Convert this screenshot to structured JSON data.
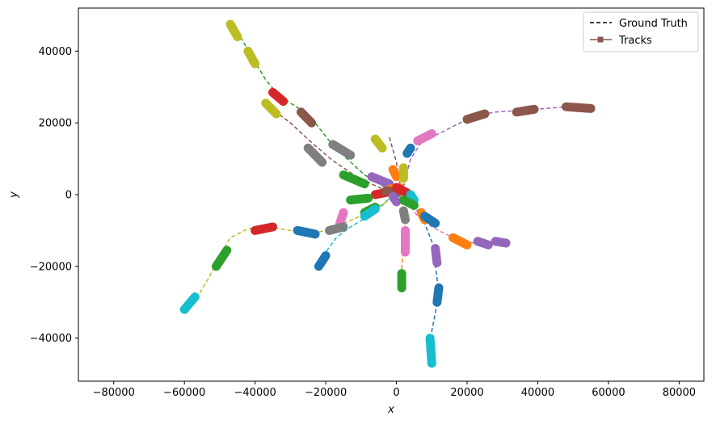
{
  "chart_data": {
    "type": "line",
    "xlabel": "x",
    "ylabel": "y",
    "xlim": [
      -90000,
      87000
    ],
    "ylim": [
      -52000,
      52000
    ],
    "xticks": [
      -80000,
      -60000,
      -40000,
      -20000,
      0,
      20000,
      40000,
      60000,
      80000
    ],
    "yticks": [
      -40000,
      -20000,
      0,
      20000,
      40000
    ],
    "xtick_labels": [
      "−80000",
      "−60000",
      "−40000",
      "−20000",
      "0",
      "20000",
      "40000",
      "60000",
      "80000"
    ],
    "ytick_labels": [
      "−40000",
      "−20000",
      "0",
      "20000",
      "40000"
    ],
    "legend_position": "top-right",
    "legend": [
      {
        "label": "Ground Truth",
        "style": "dashed",
        "color": "#000000"
      },
      {
        "label": "Tracks",
        "style": "solid-square-marker",
        "color": "#8c564b"
      }
    ],
    "ground_truth": [
      {
        "color": "#2ca02c",
        "points": [
          [
            -46000,
            47000
          ],
          [
            -43000,
            42000
          ],
          [
            -40000,
            37000
          ],
          [
            -37000,
            32000
          ],
          [
            -34000,
            28500
          ],
          [
            -30000,
            25500
          ],
          [
            -26000,
            23000
          ],
          [
            -23000,
            20000
          ],
          [
            -19000,
            15000
          ],
          [
            -14000,
            10000
          ],
          [
            -9000,
            5500
          ],
          [
            -4000,
            2500
          ],
          [
            0,
            0
          ]
        ]
      },
      {
        "color": "#8c564b",
        "points": [
          [
            -36000,
            24500
          ],
          [
            -30000,
            20000
          ],
          [
            -24000,
            14500
          ],
          [
            -18000,
            9500
          ],
          [
            -12000,
            5500
          ],
          [
            -6000,
            2500
          ],
          [
            0,
            0
          ]
        ]
      },
      {
        "color": "#9467bd",
        "points": [
          [
            2000,
            2000
          ],
          [
            4000,
            10000
          ],
          [
            7000,
            14500
          ],
          [
            12000,
            17000
          ],
          [
            17000,
            19500
          ],
          [
            22000,
            22000
          ],
          [
            28000,
            23000
          ],
          [
            35000,
            23500
          ],
          [
            42000,
            24000
          ],
          [
            48000,
            24500
          ],
          [
            54000,
            24000
          ]
        ]
      },
      {
        "color": "#8c564b",
        "points": [
          [
            -2000,
            16000
          ],
          [
            0,
            9000
          ],
          [
            1000,
            3000
          ],
          [
            1000,
            0
          ]
        ]
      },
      {
        "color": "#d62728",
        "points": [
          [
            -4000,
            1000
          ],
          [
            -1000,
            1500
          ],
          [
            2000,
            1500
          ]
        ]
      },
      {
        "color": "#1f77b4",
        "points": [
          [
            0,
            0
          ],
          [
            5000,
            -3000
          ],
          [
            8000,
            -8000
          ],
          [
            10000,
            -13000
          ],
          [
            11000,
            -20000
          ],
          [
            12000,
            -27000
          ],
          [
            11000,
            -33000
          ],
          [
            10000,
            -38000
          ],
          [
            9500,
            -47000
          ]
        ]
      },
      {
        "color": "#e377c2",
        "points": [
          [
            3000,
            -2000
          ],
          [
            6000,
            -6000
          ],
          [
            10000,
            -9000
          ],
          [
            16000,
            -12000
          ],
          [
            22000,
            -13500
          ],
          [
            28000,
            -13500
          ],
          [
            31000,
            -13000
          ]
        ]
      },
      {
        "color": "#ff7f0e",
        "points": [
          [
            1000,
            0
          ],
          [
            2000,
            -5000
          ],
          [
            2500,
            -10000
          ],
          [
            2000,
            -15000
          ],
          [
            1500,
            -20000
          ],
          [
            1500,
            -25000
          ]
        ]
      },
      {
        "color": "#17becf",
        "points": [
          [
            -1000,
            0
          ],
          [
            -4000,
            -3000
          ],
          [
            -8000,
            -6000
          ],
          [
            -13000,
            -9000
          ],
          [
            -17000,
            -12000
          ],
          [
            -20000,
            -16000
          ],
          [
            -22000,
            -20000
          ]
        ]
      },
      {
        "color": "#bcbd22",
        "points": [
          [
            -1000,
            -1000
          ],
          [
            -8000,
            -5000
          ],
          [
            -17000,
            -9000
          ],
          [
            -24000,
            -11000
          ],
          [
            -30000,
            -10000
          ],
          [
            -36000,
            -9000
          ],
          [
            -42000,
            -9500
          ],
          [
            -47000,
            -12000
          ],
          [
            -50000,
            -17000
          ],
          [
            -53000,
            -23000
          ],
          [
            -56000,
            -28000
          ],
          [
            -60000,
            -32000
          ]
        ]
      }
    ],
    "tracks": [
      {
        "color": "#bcbd22",
        "points": [
          [
            -47000,
            47500
          ],
          [
            -45000,
            44000
          ]
        ]
      },
      {
        "color": "#bcbd22",
        "points": [
          [
            -42000,
            40000
          ],
          [
            -40000,
            36500
          ]
        ]
      },
      {
        "color": "#d62728",
        "points": [
          [
            -35000,
            28500
          ],
          [
            -32000,
            26000
          ]
        ]
      },
      {
        "color": "#bcbd22",
        "points": [
          [
            -37000,
            25500
          ],
          [
            -34000,
            22500
          ]
        ]
      },
      {
        "color": "#8c564b",
        "points": [
          [
            -27000,
            23000
          ],
          [
            -24000,
            20000
          ]
        ]
      },
      {
        "color": "#7f7f7f",
        "points": [
          [
            -25000,
            13000
          ],
          [
            -21000,
            9000
          ]
        ]
      },
      {
        "color": "#7f7f7f",
        "points": [
          [
            -18000,
            14000
          ],
          [
            -13000,
            11000
          ]
        ]
      },
      {
        "color": "#2ca02c",
        "points": [
          [
            -15000,
            5500
          ],
          [
            -9000,
            3000
          ]
        ]
      },
      {
        "color": "#9467bd",
        "points": [
          [
            -7000,
            5000
          ],
          [
            -2000,
            3000
          ]
        ]
      },
      {
        "color": "#bcbd22",
        "points": [
          [
            -6000,
            15500
          ],
          [
            -4000,
            13000
          ]
        ]
      },
      {
        "color": "#ff7f0e",
        "points": [
          [
            -1000,
            7000
          ],
          [
            0,
            5000
          ]
        ]
      },
      {
        "color": "#bcbd22",
        "points": [
          [
            2000,
            7500
          ],
          [
            2000,
            4500
          ]
        ]
      },
      {
        "color": "#1f77b4",
        "points": [
          [
            3000,
            11500
          ],
          [
            4000,
            13000
          ]
        ]
      },
      {
        "color": "#e377c2",
        "points": [
          [
            6000,
            15000
          ],
          [
            10000,
            17000
          ]
        ]
      },
      {
        "color": "#8c564b",
        "points": [
          [
            20000,
            21000
          ],
          [
            25000,
            22500
          ]
        ]
      },
      {
        "color": "#8c564b",
        "points": [
          [
            34000,
            23000
          ],
          [
            39000,
            23800
          ]
        ]
      },
      {
        "color": "#8c564b",
        "points": [
          [
            48000,
            24500
          ],
          [
            55000,
            24000
          ]
        ]
      },
      {
        "color": "#ff7f0e",
        "points": [
          [
            -2000,
            1500
          ],
          [
            1000,
            2000
          ]
        ]
      },
      {
        "color": "#d62728",
        "points": [
          [
            -6000,
            0
          ],
          [
            -1000,
            1000
          ]
        ]
      },
      {
        "color": "#8c564b",
        "points": [
          [
            -3000,
            1000
          ],
          [
            2000,
            1000
          ]
        ]
      },
      {
        "color": "#d62728",
        "points": [
          [
            0,
            2000
          ],
          [
            3000,
            500
          ]
        ]
      },
      {
        "color": "#17becf",
        "points": [
          [
            4000,
            0
          ],
          [
            5000,
            -1500
          ]
        ]
      },
      {
        "color": "#9467bd",
        "points": [
          [
            -1000,
            -500
          ],
          [
            0,
            -2000
          ]
        ]
      },
      {
        "color": "#2ca02c",
        "points": [
          [
            2000,
            -1500
          ],
          [
            5000,
            -3000
          ]
        ]
      },
      {
        "color": "#ff7f0e",
        "points": [
          [
            7000,
            -5000
          ],
          [
            8000,
            -7000
          ]
        ]
      },
      {
        "color": "#1f77b4",
        "points": [
          [
            8000,
            -6000
          ],
          [
            11000,
            -8000
          ]
        ]
      },
      {
        "color": "#7f7f7f",
        "points": [
          [
            2000,
            -4500
          ],
          [
            2500,
            -7000
          ]
        ]
      },
      {
        "color": "#2ca02c",
        "points": [
          [
            -13000,
            -1500
          ],
          [
            -8000,
            -1000
          ]
        ]
      },
      {
        "color": "#2ca02c",
        "points": [
          [
            -9000,
            -5000
          ],
          [
            -6000,
            -3500
          ]
        ]
      },
      {
        "color": "#17becf",
        "points": [
          [
            -9000,
            -6000
          ],
          [
            -6000,
            -4000
          ]
        ]
      },
      {
        "color": "#e377c2",
        "points": [
          [
            -16000,
            -8000
          ],
          [
            -15000,
            -5000
          ]
        ]
      },
      {
        "color": "#7f7f7f",
        "points": [
          [
            -19000,
            -10000
          ],
          [
            -15000,
            -9000
          ]
        ]
      },
      {
        "color": "#1f77b4",
        "points": [
          [
            -28000,
            -10000
          ],
          [
            -23000,
            -11000
          ]
        ]
      },
      {
        "color": "#1f77b4",
        "points": [
          [
            -22000,
            -20000
          ],
          [
            -20000,
            -17000
          ]
        ]
      },
      {
        "color": "#d62728",
        "points": [
          [
            -40000,
            -10000
          ],
          [
            -35000,
            -9000
          ]
        ]
      },
      {
        "color": "#2ca02c",
        "points": [
          [
            -51000,
            -20000
          ],
          [
            -48000,
            -15500
          ]
        ]
      },
      {
        "color": "#17becf",
        "points": [
          [
            -60000,
            -32000
          ],
          [
            -57000,
            -28500
          ]
        ]
      },
      {
        "color": "#e377c2",
        "points": [
          [
            2500,
            -10000
          ],
          [
            2500,
            -16000
          ]
        ]
      },
      {
        "color": "#2ca02c",
        "points": [
          [
            1500,
            -22000
          ],
          [
            1500,
            -26000
          ]
        ]
      },
      {
        "color": "#ff7f0e",
        "points": [
          [
            16000,
            -12000
          ],
          [
            20000,
            -14000
          ]
        ]
      },
      {
        "color": "#9467bd",
        "points": [
          [
            23000,
            -13000
          ],
          [
            26000,
            -14000
          ]
        ]
      },
      {
        "color": "#9467bd",
        "points": [
          [
            28000,
            -13000
          ],
          [
            31000,
            -13500
          ]
        ]
      },
      {
        "color": "#9467bd",
        "points": [
          [
            11000,
            -15000
          ],
          [
            11500,
            -19000
          ]
        ]
      },
      {
        "color": "#1f77b4",
        "points": [
          [
            12000,
            -26000
          ],
          [
            11500,
            -30000
          ]
        ]
      },
      {
        "color": "#17becf",
        "points": [
          [
            9500,
            -40000
          ],
          [
            10000,
            -47000
          ]
        ]
      }
    ]
  }
}
